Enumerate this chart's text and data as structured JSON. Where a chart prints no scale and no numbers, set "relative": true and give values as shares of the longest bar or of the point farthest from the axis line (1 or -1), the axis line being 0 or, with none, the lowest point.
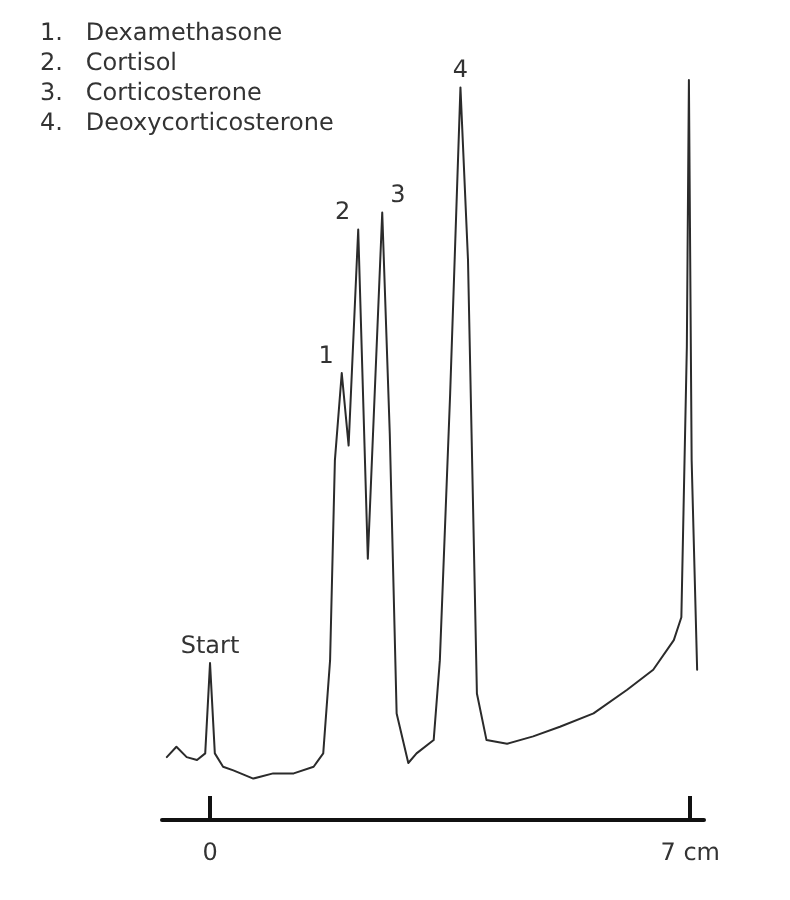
{
  "chart_data": {
    "type": "line",
    "relative": true,
    "color": "#2b2b2b",
    "x": [
      -0.63,
      -0.49,
      -0.34,
      -0.19,
      -0.07,
      0,
      0.07,
      0.19,
      0.34,
      0.63,
      0.92,
      1.22,
      1.51,
      1.65,
      1.75,
      1.82,
      1.92,
      2.02,
      2.16,
      2.3,
      2.51,
      2.62,
      2.72,
      2.89,
      3.01,
      3.26,
      3.35,
      3.5,
      3.65,
      3.76,
      3.89,
      4.03,
      4.33,
      4.71,
      5.1,
      5.59,
      6.08,
      6.46,
      6.76,
      6.87,
      6.95,
      6.98,
      7.02,
      7.1
    ],
    "values": [
      0.085,
      0.099,
      0.085,
      0.081,
      0.09,
      0.212,
      0.09,
      0.072,
      0.067,
      0.056,
      0.063,
      0.063,
      0.072,
      0.09,
      0.216,
      0.486,
      0.604,
      0.506,
      0.798,
      0.353,
      0.821,
      0.522,
      0.144,
      0.077,
      0.09,
      0.108,
      0.216,
      0.576,
      0.99,
      0.757,
      0.171,
      0.108,
      0.103,
      0.113,
      0.126,
      0.144,
      0.176,
      0.203,
      0.243,
      0.274,
      0.64,
      1,
      0.486,
      0.203
    ],
    "xlim": [
      -0.7,
      7.2
    ],
    "xticks": [
      0,
      {
        "value": 7,
        "label": "7 cm"
      }
    ],
    "tick_labels": "x",
    "grid": false,
    "marker": "none",
    "line_style": "solid",
    "annotations": [
      "1.   Dexamethasone",
      "2.   Cortisol",
      "3.   Corticosterone",
      "4.   Deoxycorticosterone",
      {
        "text": "Start",
        "x": 0,
        "y": 0.212
      },
      {
        "text": "1",
        "x": 1.92,
        "y": 0.604
      },
      {
        "text": "2",
        "x": 2.16,
        "y": 0.798
      },
      {
        "text": "3",
        "x": 2.51,
        "y": 0.821
      },
      {
        "text": "4",
        "x": 3.65,
        "y": 0.99
      }
    ]
  }
}
